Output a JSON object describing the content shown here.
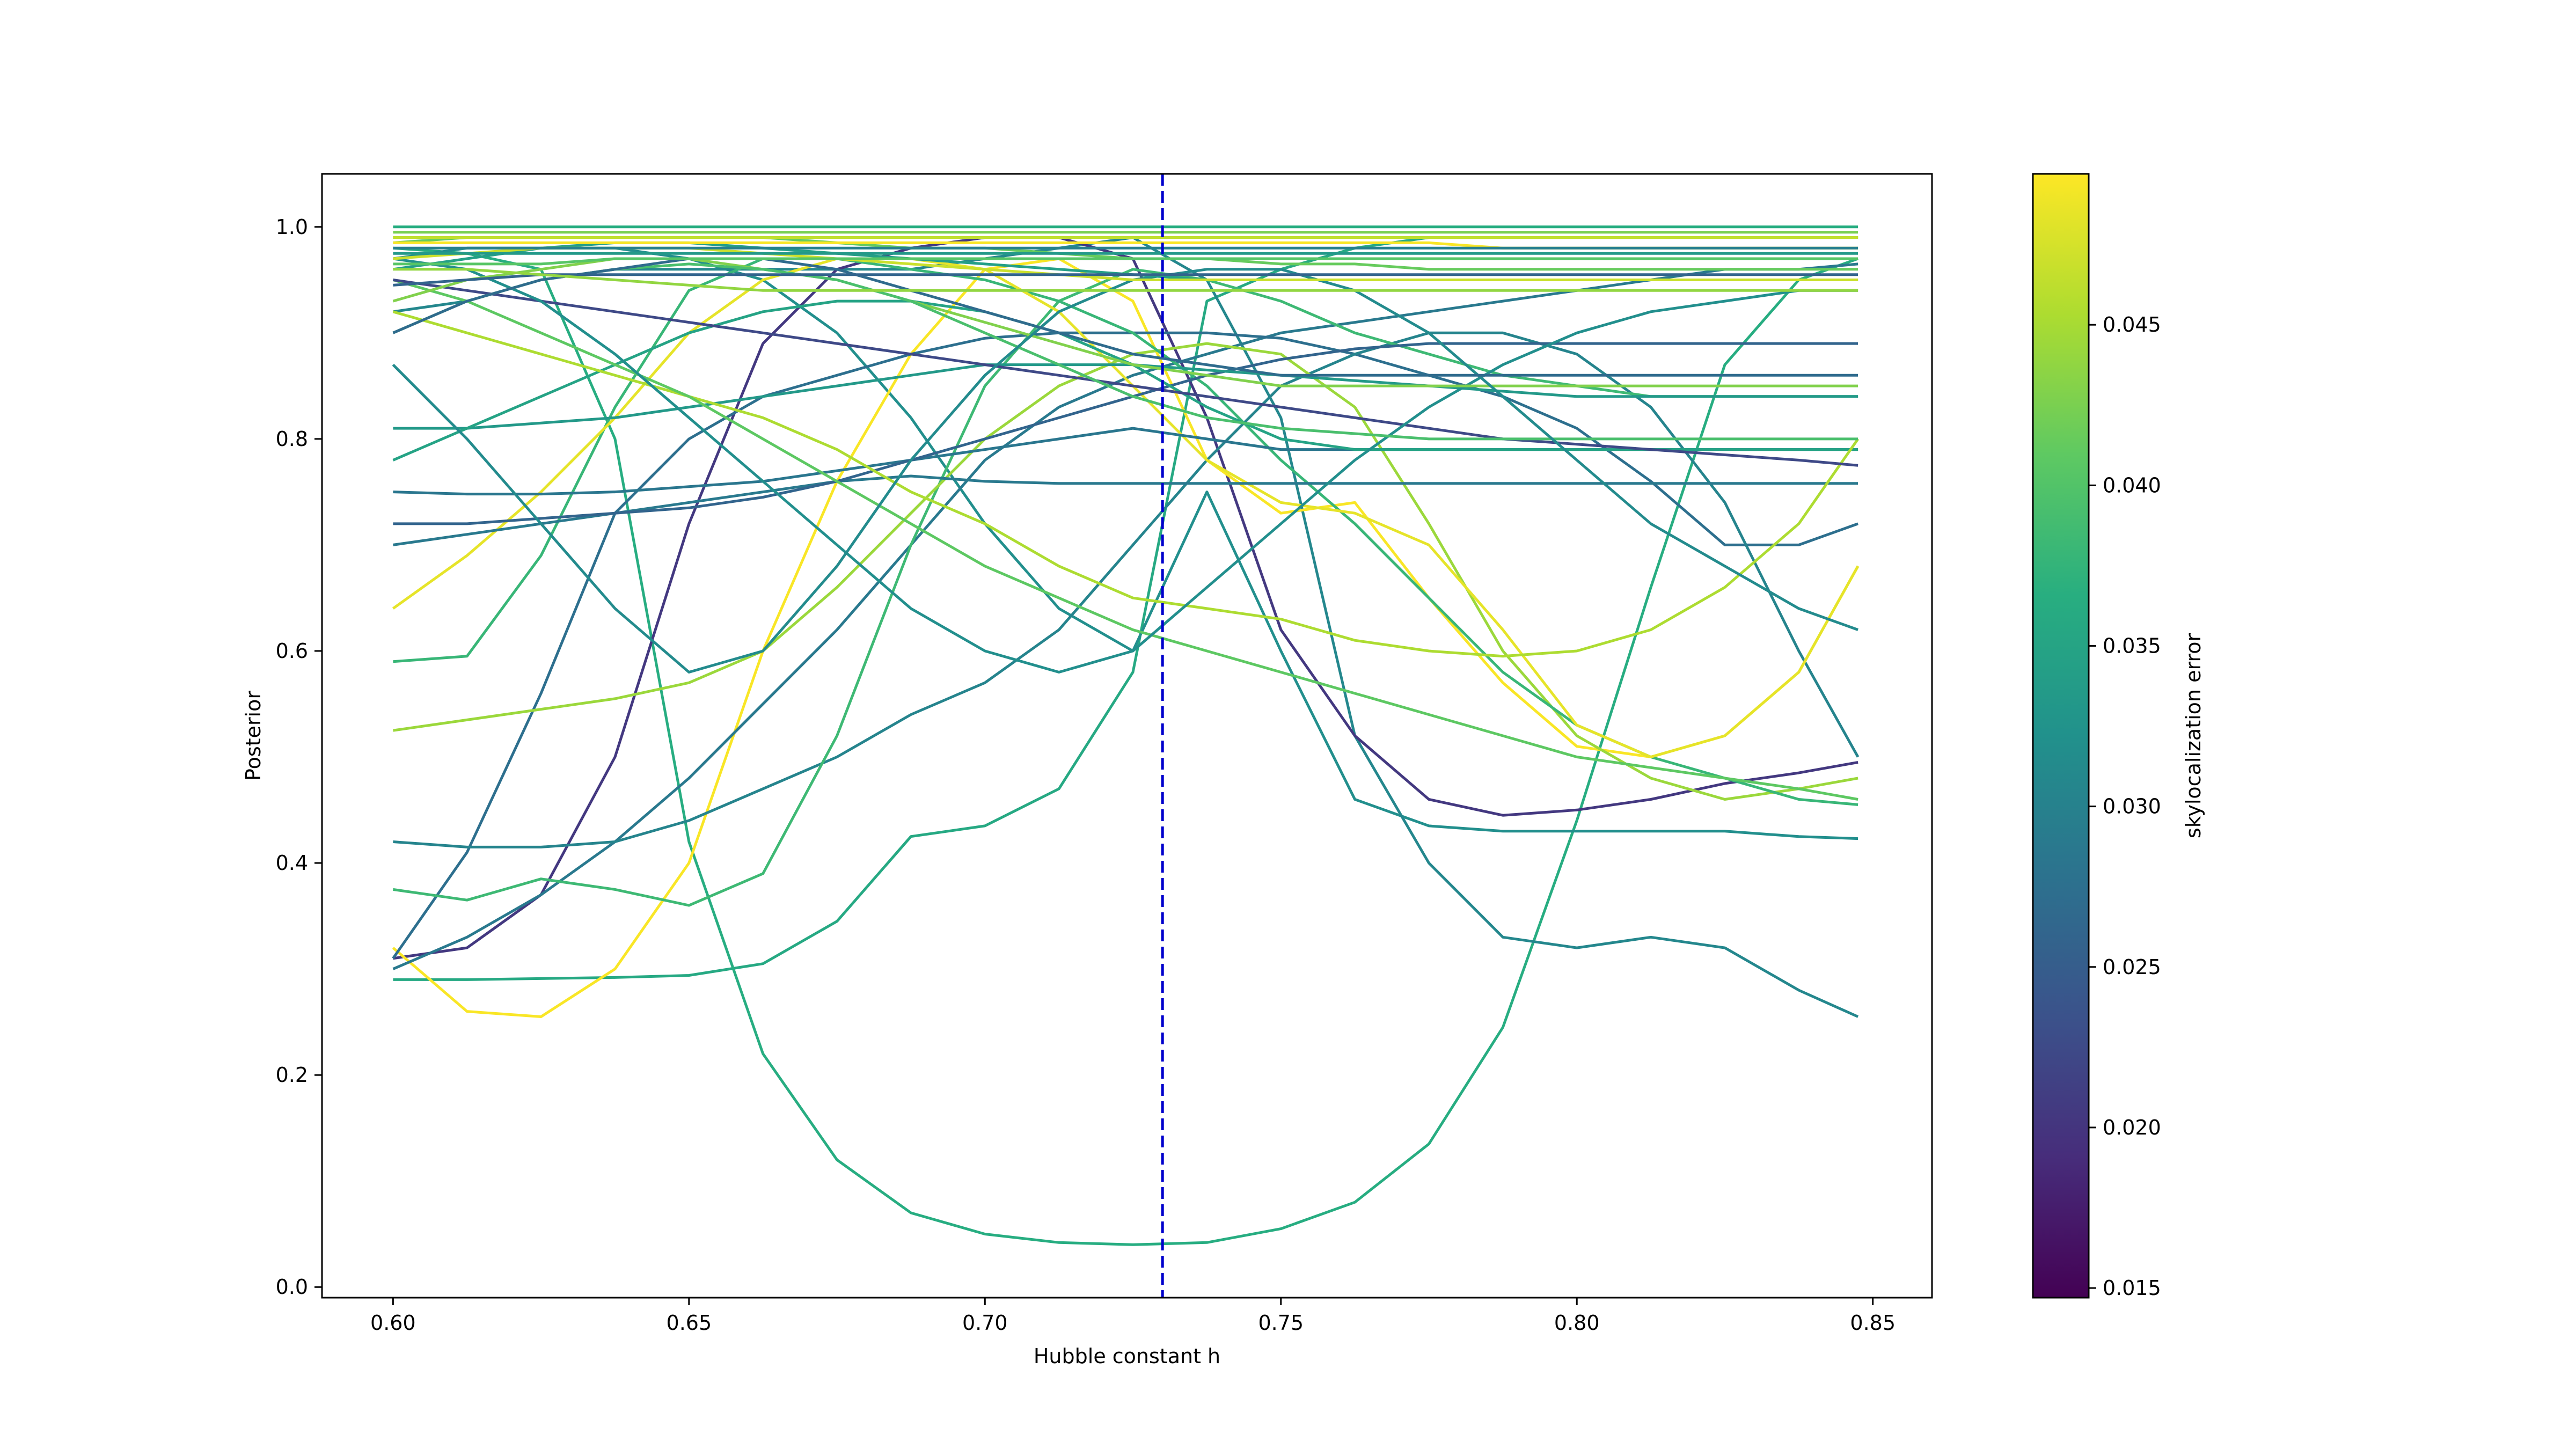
{
  "chart_data": {
    "type": "line",
    "title": "",
    "xlabel": "Hubble constant h",
    "ylabel": "Posterior",
    "xlim": [
      0.588,
      0.86
    ],
    "ylim": [
      -0.01,
      1.05
    ],
    "xticks": [
      0.6,
      0.65,
      0.7,
      0.75,
      0.8,
      0.85
    ],
    "xtick_labels": [
      "0.60",
      "0.65",
      "0.70",
      "0.75",
      "0.80",
      "0.85"
    ],
    "yticks": [
      0.0,
      0.2,
      0.4,
      0.6,
      0.8,
      1.0
    ],
    "ytick_labels": [
      "0.0",
      "0.2",
      "0.4",
      "0.6",
      "0.8",
      "1.0"
    ],
    "grid": false,
    "reference_line": {
      "x": 0.73,
      "color": "#0000cc",
      "style": "dashed"
    },
    "colormap": "viridis",
    "colorbar": {
      "label": "skylocalization error",
      "range": [
        0.0147,
        0.0497
      ],
      "ticks": [
        0.015,
        0.02,
        0.025,
        0.03,
        0.035,
        0.04,
        0.045
      ],
      "tick_labels": [
        "0.015",
        "0.020",
        "0.025",
        "0.030",
        "0.035",
        "0.040",
        "0.045"
      ]
    },
    "x": [
      0.6,
      0.6125,
      0.625,
      0.6375,
      0.65,
      0.6625,
      0.675,
      0.6875,
      0.7,
      0.7125,
      0.725,
      0.7375,
      0.75,
      0.7625,
      0.775,
      0.7875,
      0.8,
      0.8125,
      0.825,
      0.8375,
      0.8475
    ],
    "series": [
      {
        "c": 0.036,
        "y": [
          0.29,
          0.29,
          0.291,
          0.292,
          0.294,
          0.305,
          0.345,
          0.425,
          0.435,
          0.47,
          0.58,
          0.93,
          0.96,
          0.98,
          0.99,
          0.99,
          0.99,
          0.99,
          0.99,
          0.99,
          0.99
        ]
      },
      {
        "c": 0.0365,
        "y": [
          0.98,
          0.975,
          0.96,
          0.8,
          0.42,
          0.22,
          0.12,
          0.07,
          0.05,
          0.042,
          0.04,
          0.042,
          0.055,
          0.08,
          0.135,
          0.245,
          0.44,
          0.66,
          0.87,
          0.95,
          0.97
        ]
      },
      {
        "c": 0.032,
        "y": [
          0.97,
          0.98,
          0.98,
          0.98,
          0.97,
          0.95,
          0.9,
          0.82,
          0.72,
          0.64,
          0.6,
          0.75,
          0.6,
          0.46,
          0.435,
          0.43,
          0.43,
          0.43,
          0.43,
          0.425,
          0.423
        ]
      },
      {
        "c": 0.031,
        "y": [
          0.92,
          0.93,
          0.95,
          0.96,
          0.96,
          0.96,
          0.96,
          0.96,
          0.97,
          0.98,
          0.99,
          0.95,
          0.82,
          0.52,
          0.4,
          0.33,
          0.32,
          0.33,
          0.32,
          0.28,
          0.255
        ]
      },
      {
        "c": 0.0205,
        "y": [
          0.31,
          0.32,
          0.37,
          0.5,
          0.72,
          0.89,
          0.96,
          0.98,
          0.99,
          0.99,
          0.97,
          0.82,
          0.62,
          0.52,
          0.46,
          0.445,
          0.45,
          0.46,
          0.475,
          0.485,
          0.495
        ]
      },
      {
        "c": 0.0495,
        "y": [
          0.32,
          0.26,
          0.255,
          0.3,
          0.4,
          0.6,
          0.76,
          0.88,
          0.96,
          0.97,
          0.93,
          0.78,
          0.73,
          0.74,
          0.65,
          0.57,
          0.51,
          0.5,
          0.52,
          0.58,
          0.68
        ]
      },
      {
        "c": 0.029,
        "y": [
          0.3,
          0.33,
          0.37,
          0.42,
          0.48,
          0.55,
          0.62,
          0.7,
          0.78,
          0.83,
          0.86,
          0.88,
          0.9,
          0.91,
          0.92,
          0.93,
          0.94,
          0.95,
          0.96,
          0.96,
          0.965
        ]
      },
      {
        "c": 0.0275,
        "y": [
          0.31,
          0.41,
          0.56,
          0.73,
          0.8,
          0.84,
          0.86,
          0.88,
          0.895,
          0.9,
          0.9,
          0.9,
          0.895,
          0.88,
          0.86,
          0.84,
          0.81,
          0.76,
          0.7,
          0.7,
          0.72
        ]
      },
      {
        "c": 0.0305,
        "y": [
          0.42,
          0.415,
          0.415,
          0.42,
          0.44,
          0.47,
          0.5,
          0.54,
          0.57,
          0.62,
          0.7,
          0.78,
          0.85,
          0.88,
          0.9,
          0.9,
          0.88,
          0.83,
          0.74,
          0.6,
          0.5
        ]
      },
      {
        "c": 0.0385,
        "y": [
          0.375,
          0.365,
          0.385,
          0.375,
          0.36,
          0.39,
          0.52,
          0.7,
          0.85,
          0.93,
          0.96,
          0.95,
          0.93,
          0.9,
          0.88,
          0.86,
          0.85,
          0.84,
          0.84,
          0.84,
          0.84
        ]
      },
      {
        "c": 0.0445,
        "y": [
          0.525,
          0.535,
          0.545,
          0.555,
          0.57,
          0.6,
          0.66,
          0.73,
          0.8,
          0.85,
          0.88,
          0.89,
          0.88,
          0.83,
          0.72,
          0.6,
          0.52,
          0.48,
          0.46,
          0.47,
          0.48
        ]
      },
      {
        "c": 0.038,
        "y": [
          0.59,
          0.595,
          0.69,
          0.83,
          0.94,
          0.97,
          0.97,
          0.96,
          0.95,
          0.93,
          0.9,
          0.85,
          0.78,
          0.72,
          0.65,
          0.58,
          0.53,
          0.5,
          0.48,
          0.46,
          0.455
        ]
      },
      {
        "c": 0.0485,
        "y": [
          0.64,
          0.69,
          0.75,
          0.82,
          0.9,
          0.95,
          0.97,
          0.97,
          0.96,
          0.92,
          0.85,
          0.78,
          0.74,
          0.73,
          0.7,
          0.62,
          0.53,
          0.5,
          0.52,
          0.58,
          0.68
        ]
      },
      {
        "c": 0.029,
        "y": [
          0.7,
          0.71,
          0.72,
          0.73,
          0.74,
          0.75,
          0.76,
          0.765,
          0.76,
          0.758,
          0.758,
          0.758,
          0.758,
          0.758,
          0.758,
          0.758,
          0.758,
          0.758,
          0.758,
          0.758,
          0.758
        ]
      },
      {
        "c": 0.0285,
        "y": [
          0.75,
          0.748,
          0.748,
          0.75,
          0.755,
          0.76,
          0.77,
          0.78,
          0.79,
          0.8,
          0.81,
          0.8,
          0.79,
          0.79,
          0.79,
          0.79,
          0.79,
          0.79,
          0.79,
          0.79,
          0.79
        ]
      },
      {
        "c": 0.026,
        "y": [
          0.72,
          0.72,
          0.725,
          0.73,
          0.735,
          0.745,
          0.76,
          0.78,
          0.8,
          0.82,
          0.84,
          0.86,
          0.875,
          0.885,
          0.89,
          0.89,
          0.89,
          0.89,
          0.89,
          0.89,
          0.89
        ]
      },
      {
        "c": 0.0335,
        "y": [
          0.81,
          0.81,
          0.815,
          0.82,
          0.83,
          0.84,
          0.85,
          0.86,
          0.87,
          0.87,
          0.87,
          0.865,
          0.86,
          0.855,
          0.85,
          0.845,
          0.84,
          0.84,
          0.84,
          0.84,
          0.84
        ]
      },
      {
        "c": 0.035,
        "y": [
          0.78,
          0.81,
          0.84,
          0.87,
          0.9,
          0.92,
          0.93,
          0.93,
          0.92,
          0.9,
          0.87,
          0.83,
          0.8,
          0.79,
          0.79,
          0.79,
          0.79,
          0.79,
          0.79,
          0.79,
          0.79
        ]
      },
      {
        "c": 0.0455,
        "y": [
          0.92,
          0.9,
          0.88,
          0.86,
          0.84,
          0.82,
          0.79,
          0.75,
          0.72,
          0.68,
          0.65,
          0.64,
          0.63,
          0.61,
          0.6,
          0.595,
          0.6,
          0.62,
          0.66,
          0.72,
          0.8
        ]
      },
      {
        "c": 0.041,
        "y": [
          0.95,
          0.93,
          0.9,
          0.87,
          0.84,
          0.8,
          0.76,
          0.72,
          0.68,
          0.65,
          0.62,
          0.6,
          0.58,
          0.56,
          0.54,
          0.52,
          0.5,
          0.49,
          0.48,
          0.47,
          0.46
        ]
      },
      {
        "c": 0.0225,
        "y": [
          0.95,
          0.94,
          0.93,
          0.92,
          0.91,
          0.9,
          0.89,
          0.88,
          0.87,
          0.86,
          0.85,
          0.84,
          0.83,
          0.82,
          0.81,
          0.8,
          0.795,
          0.79,
          0.785,
          0.78,
          0.775
        ]
      },
      {
        "c": 0.032,
        "y": [
          0.97,
          0.96,
          0.93,
          0.88,
          0.82,
          0.76,
          0.7,
          0.64,
          0.6,
          0.58,
          0.6,
          0.66,
          0.72,
          0.78,
          0.83,
          0.87,
          0.9,
          0.92,
          0.93,
          0.94,
          0.94
        ]
      },
      {
        "c": 0.043,
        "y": [
          0.93,
          0.95,
          0.96,
          0.97,
          0.97,
          0.96,
          0.95,
          0.93,
          0.91,
          0.89,
          0.87,
          0.86,
          0.85,
          0.85,
          0.85,
          0.85,
          0.85,
          0.85,
          0.85,
          0.85,
          0.85
        ]
      },
      {
        "c": 0.0395,
        "y": [
          0.9,
          0.93,
          0.95,
          0.96,
          0.965,
          0.96,
          0.95,
          0.93,
          0.9,
          0.87,
          0.84,
          0.82,
          0.81,
          0.805,
          0.8,
          0.8,
          0.8,
          0.8,
          0.8,
          0.8,
          0.8
        ]
      },
      {
        "c": 0.0315,
        "y": [
          0.87,
          0.8,
          0.72,
          0.64,
          0.58,
          0.6,
          0.68,
          0.78,
          0.86,
          0.92,
          0.95,
          0.96,
          0.96,
          0.94,
          0.9,
          0.84,
          0.78,
          0.72,
          0.68,
          0.64,
          0.62
        ]
      },
      {
        "c": 0.027,
        "y": [
          0.9,
          0.93,
          0.95,
          0.96,
          0.97,
          0.97,
          0.96,
          0.94,
          0.92,
          0.9,
          0.88,
          0.87,
          0.86,
          0.86,
          0.86,
          0.86,
          0.86,
          0.86,
          0.86,
          0.86,
          0.86
        ]
      },
      {
        "c": 0.0345,
        "y": [
          0.96,
          0.97,
          0.98,
          0.985,
          0.985,
          0.98,
          0.975,
          0.97,
          0.965,
          0.96,
          0.955,
          0.95,
          0.95,
          0.95,
          0.95,
          0.95,
          0.95,
          0.95,
          0.95,
          0.95,
          0.95
        ]
      },
      {
        "c": 0.0415,
        "y": [
          0.985,
          0.99,
          0.99,
          0.99,
          0.99,
          0.99,
          0.985,
          0.98,
          0.98,
          0.975,
          0.97,
          0.97,
          0.965,
          0.965,
          0.96,
          0.96,
          0.96,
          0.96,
          0.96,
          0.96,
          0.96
        ]
      },
      {
        "c": 0.047,
        "y": [
          0.97,
          0.975,
          0.98,
          0.98,
          0.98,
          0.975,
          0.97,
          0.965,
          0.96,
          0.955,
          0.95,
          0.95,
          0.95,
          0.95,
          0.95,
          0.95,
          0.95,
          0.95,
          0.95,
          0.95,
          0.95
        ]
      },
      {
        "c": 0.0495,
        "y": [
          0.985,
          0.985,
          0.985,
          0.985,
          0.985,
          0.985,
          0.985,
          0.985,
          0.985,
          0.985,
          0.985,
          0.985,
          0.985,
          0.985,
          0.985,
          0.98,
          0.98,
          0.98,
          0.98,
          0.98,
          0.98
        ]
      },
      {
        "c": 0.0375,
        "y": [
          0.99,
          0.99,
          0.99,
          0.99,
          0.99,
          0.99,
          0.99,
          0.99,
          0.99,
          0.99,
          0.99,
          0.99,
          0.99,
          0.99,
          0.99,
          0.99,
          0.99,
          0.99,
          0.99,
          0.99,
          0.99
        ]
      },
      {
        "c": 0.0335,
        "y": [
          0.975,
          0.975,
          0.975,
          0.975,
          0.975,
          0.975,
          0.975,
          0.975,
          0.975,
          0.975,
          0.975,
          0.975,
          0.975,
          0.975,
          0.975,
          0.975,
          0.975,
          0.975,
          0.975,
          0.975,
          0.975
        ]
      },
      {
        "c": 0.0405,
        "y": [
          0.965,
          0.965,
          0.965,
          0.97,
          0.97,
          0.97,
          0.97,
          0.97,
          0.97,
          0.97,
          0.97,
          0.97,
          0.97,
          0.97,
          0.97,
          0.97,
          0.97,
          0.97,
          0.97,
          0.97,
          0.97
        ]
      },
      {
        "c": 0.026,
        "y": [
          0.945,
          0.95,
          0.955,
          0.955,
          0.955,
          0.955,
          0.955,
          0.955,
          0.955,
          0.955,
          0.955,
          0.955,
          0.955,
          0.955,
          0.955,
          0.955,
          0.955,
          0.955,
          0.955,
          0.955,
          0.955
        ]
      },
      {
        "c": 0.044,
        "y": [
          0.96,
          0.96,
          0.955,
          0.95,
          0.945,
          0.94,
          0.94,
          0.94,
          0.94,
          0.94,
          0.94,
          0.94,
          0.94,
          0.94,
          0.94,
          0.94,
          0.94,
          0.94,
          0.94,
          0.94,
          0.94
        ]
      },
      {
        "c": 0.0365,
        "y": [
          1.0,
          1.0,
          1.0,
          1.0,
          1.0,
          1.0,
          1.0,
          1.0,
          1.0,
          1.0,
          1.0,
          1.0,
          1.0,
          1.0,
          1.0,
          1.0,
          1.0,
          1.0,
          1.0,
          1.0,
          1.0
        ]
      },
      {
        "c": 0.0465,
        "y": [
          0.99,
          0.99,
          0.99,
          0.99,
          0.99,
          0.99,
          0.99,
          0.99,
          0.99,
          0.99,
          0.99,
          0.99,
          0.99,
          0.99,
          0.99,
          0.99,
          0.99,
          0.99,
          0.99,
          0.99,
          0.99
        ]
      },
      {
        "c": 0.03,
        "y": [
          0.98,
          0.98,
          0.98,
          0.98,
          0.98,
          0.98,
          0.98,
          0.98,
          0.98,
          0.98,
          0.98,
          0.98,
          0.98,
          0.98,
          0.98,
          0.98,
          0.98,
          0.98,
          0.98,
          0.98,
          0.98
        ]
      },
      {
        "c": 0.0425,
        "y": [
          0.995,
          0.995,
          0.995,
          0.995,
          0.995,
          0.995,
          0.995,
          0.995,
          0.995,
          0.995,
          0.995,
          0.995,
          0.995,
          0.995,
          0.995,
          0.995,
          0.995,
          0.995,
          0.995,
          0.995,
          0.995
        ]
      }
    ]
  }
}
